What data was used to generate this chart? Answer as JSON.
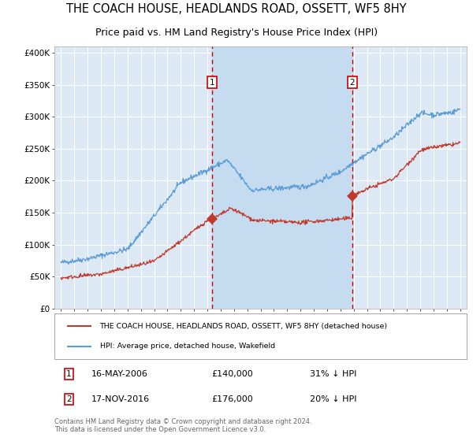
{
  "title": "THE COACH HOUSE, HEADLANDS ROAD, OSSETT, WF5 8HY",
  "subtitle": "Price paid vs. HM Land Registry's House Price Index (HPI)",
  "title_fontsize": 10.5,
  "subtitle_fontsize": 9,
  "hpi_color": "#5b9bd5",
  "price_color": "#c0392b",
  "background_color": "#ffffff",
  "plot_bg_color": "#dce9f5",
  "grid_color": "#ffffff",
  "shading_color": "#c5dbf0",
  "yticks": [
    0,
    50000,
    100000,
    150000,
    200000,
    250000,
    300000,
    350000,
    400000
  ],
  "ytick_labels": [
    "£0",
    "£50K",
    "£100K",
    "£150K",
    "£200K",
    "£250K",
    "£300K",
    "£350K",
    "£400K"
  ],
  "sale1_date": 2006.37,
  "sale1_price": 140000,
  "sale1_label": "1",
  "sale2_date": 2016.88,
  "sale2_price": 176000,
  "sale2_label": "2",
  "legend_line1": "THE COACH HOUSE, HEADLANDS ROAD, OSSETT, WF5 8HY (detached house)",
  "legend_line2": "HPI: Average price, detached house, Wakefield",
  "note1_label": "1",
  "note1_date": "16-MAY-2006",
  "note1_price": "£140,000",
  "note1_pct": "31% ↓ HPI",
  "note2_label": "2",
  "note2_date": "17-NOV-2016",
  "note2_price": "£176,000",
  "note2_pct": "20% ↓ HPI",
  "footer": "Contains HM Land Registry data © Crown copyright and database right 2024.\nThis data is licensed under the Open Government Licence v3.0.",
  "xmin": 1994.5,
  "xmax": 2025.5,
  "ymin": 0,
  "ymax": 410000
}
